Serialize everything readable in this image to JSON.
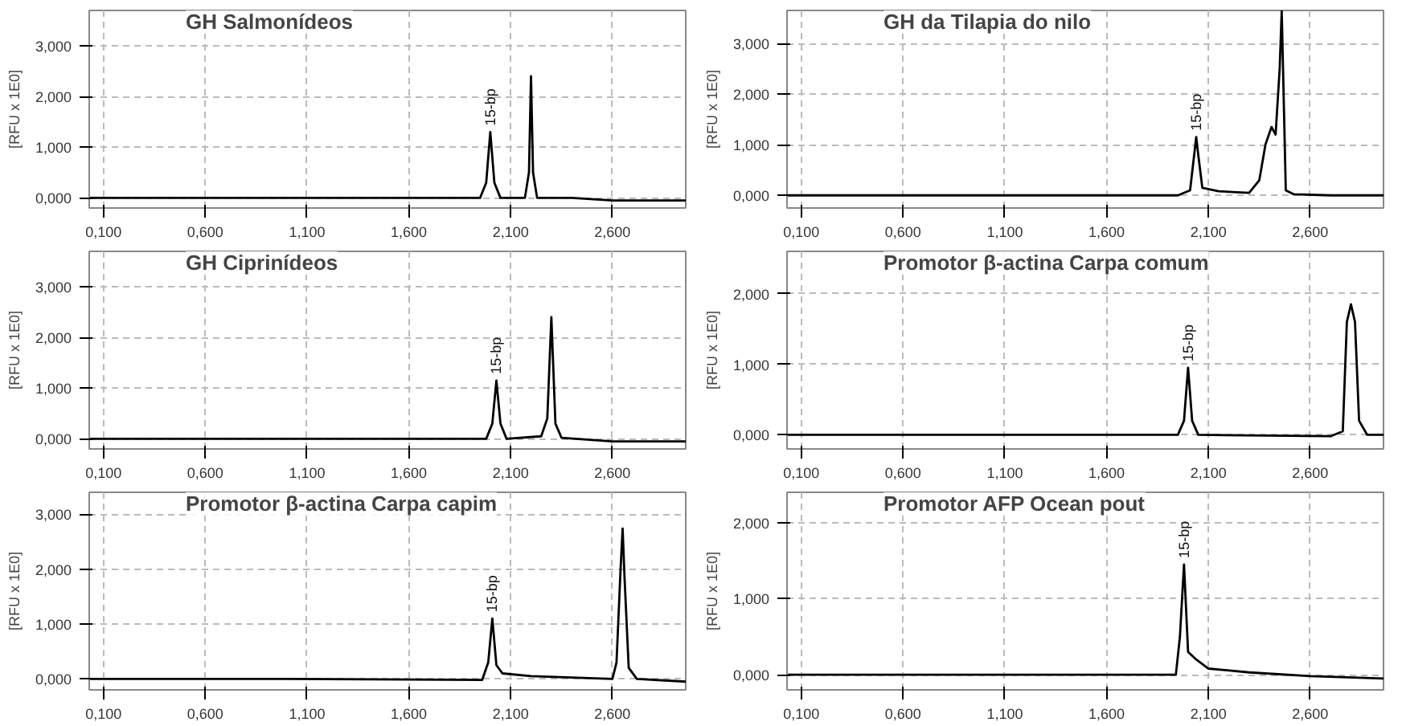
{
  "chart_data": [
    {
      "type": "line",
      "title": "GH Salmonídeos",
      "ylabel": "[RFU x 1E0]",
      "grid": true,
      "xlim": [
        0.03,
        2.96
      ],
      "ylim": [
        -0.2,
        3.7
      ],
      "xticks": [
        {
          "value": 0.1,
          "label": "0,100"
        },
        {
          "value": 0.6,
          "label": "0,600"
        },
        {
          "value": 1.1,
          "label": "1,100"
        },
        {
          "value": 1.6,
          "label": "1,600"
        },
        {
          "value": 2.1,
          "label": "2,100"
        },
        {
          "value": 2.6,
          "label": "2,600"
        }
      ],
      "yticks": [
        {
          "value": 0,
          "label": "0,000"
        },
        {
          "value": 1,
          "label": "1,000"
        },
        {
          "value": 2,
          "label": "2,000"
        },
        {
          "value": 3,
          "label": "3,000"
        }
      ],
      "annotations": [
        {
          "text": "15-bp",
          "x": 2.0,
          "y": 1.3
        }
      ],
      "series": [
        {
          "color": "#000000",
          "x": [
            0.03,
            0.5,
            1.0,
            1.5,
            1.95,
            1.98,
            2.0,
            2.02,
            2.05,
            2.17,
            2.19,
            2.2,
            2.21,
            2.23,
            2.4,
            2.6,
            2.96
          ],
          "values": [
            0,
            0,
            0,
            0,
            0,
            0.3,
            1.3,
            0.3,
            0,
            0,
            0.5,
            2.4,
            0.5,
            0,
            0,
            -0.05,
            -0.05
          ]
        }
      ]
    },
    {
      "type": "line",
      "title": "GH da Tilapia do nilo",
      "ylabel": "[RFU x 1E0]",
      "grid": true,
      "xlim": [
        0.03,
        2.96
      ],
      "ylim": [
        -0.25,
        3.65
      ],
      "xticks": [
        {
          "value": 0.1,
          "label": "0,100"
        },
        {
          "value": 0.6,
          "label": "0,600"
        },
        {
          "value": 1.1,
          "label": "1,100"
        },
        {
          "value": 1.6,
          "label": "1,600"
        },
        {
          "value": 2.1,
          "label": "2,100"
        },
        {
          "value": 2.6,
          "label": "2,600"
        }
      ],
      "yticks": [
        {
          "value": 0,
          "label": "0,000"
        },
        {
          "value": 1,
          "label": "1,000"
        },
        {
          "value": 2,
          "label": "2,000"
        },
        {
          "value": 3,
          "label": "3,000"
        }
      ],
      "annotations": [
        {
          "text": "15-bp",
          "x": 2.04,
          "y": 1.15
        }
      ],
      "series": [
        {
          "color": "#000000",
          "x": [
            0.03,
            1.0,
            1.95,
            2.01,
            2.03,
            2.04,
            2.05,
            2.07,
            2.15,
            2.3,
            2.35,
            2.38,
            2.41,
            2.43,
            2.45,
            2.46,
            2.48,
            2.52,
            2.7,
            2.96
          ],
          "values": [
            0,
            0,
            0,
            0.1,
            0.8,
            1.15,
            0.8,
            0.15,
            0.08,
            0.05,
            0.3,
            1.0,
            1.35,
            1.2,
            2.5,
            3.65,
            0.1,
            0.02,
            0,
            0
          ]
        }
      ]
    },
    {
      "type": "line",
      "title": "GH Ciprinídeos",
      "ylabel": "[RFU x 1E0]",
      "grid": true,
      "xlim": [
        0.03,
        2.96
      ],
      "ylim": [
        -0.2,
        3.7
      ],
      "xticks": [
        {
          "value": 0.1,
          "label": "0,100"
        },
        {
          "value": 0.6,
          "label": "0,600"
        },
        {
          "value": 1.1,
          "label": "1,100"
        },
        {
          "value": 1.6,
          "label": "1,600"
        },
        {
          "value": 2.1,
          "label": "2,100"
        },
        {
          "value": 2.6,
          "label": "2,600"
        }
      ],
      "yticks": [
        {
          "value": 0,
          "label": "0,000"
        },
        {
          "value": 1,
          "label": "1,000"
        },
        {
          "value": 2,
          "label": "2,000"
        },
        {
          "value": 3,
          "label": "3,000"
        }
      ],
      "annotations": [
        {
          "text": "15-bp",
          "x": 2.03,
          "y": 1.15
        }
      ],
      "series": [
        {
          "color": "#000000",
          "x": [
            0.03,
            1.0,
            1.98,
            2.01,
            2.03,
            2.05,
            2.08,
            2.25,
            2.28,
            2.3,
            2.32,
            2.35,
            2.6,
            2.96
          ],
          "values": [
            0,
            0,
            0,
            0.3,
            1.15,
            0.3,
            0,
            0.05,
            0.4,
            2.4,
            0.3,
            0.02,
            -0.05,
            -0.05
          ]
        }
      ]
    },
    {
      "type": "line",
      "title": "Promotor β-actina Carpa comum",
      "ylabel": "[RFU x 1E0]",
      "grid": true,
      "xlim": [
        0.03,
        2.96
      ],
      "ylim": [
        -0.2,
        2.6
      ],
      "xticks": [
        {
          "value": 0.1,
          "label": "0,100"
        },
        {
          "value": 0.6,
          "label": "0,600"
        },
        {
          "value": 1.1,
          "label": "1,100"
        },
        {
          "value": 1.6,
          "label": "1,600"
        },
        {
          "value": 2.1,
          "label": "2,100"
        },
        {
          "value": 2.6,
          "label": "2,600"
        }
      ],
      "yticks": [
        {
          "value": 0,
          "label": "0,000"
        },
        {
          "value": 1,
          "label": "1,000"
        },
        {
          "value": 2,
          "label": "2,000"
        }
      ],
      "annotations": [
        {
          "text": "15-bp",
          "x": 2.0,
          "y": 0.95
        }
      ],
      "series": [
        {
          "color": "#000000",
          "x": [
            0.03,
            1.0,
            1.95,
            1.98,
            2.0,
            2.02,
            2.05,
            2.7,
            2.76,
            2.78,
            2.8,
            2.82,
            2.84,
            2.88,
            2.96
          ],
          "values": [
            0,
            0,
            0,
            0.2,
            0.95,
            0.2,
            0,
            -0.02,
            0.05,
            1.6,
            1.85,
            1.6,
            0.2,
            0,
            0
          ]
        }
      ]
    },
    {
      "type": "line",
      "title": "Promotor β-actina Carpa capim",
      "ylabel": "[RFU x 1E0]",
      "grid": true,
      "xlim": [
        0.03,
        2.96
      ],
      "ylim": [
        -0.2,
        3.4
      ],
      "xticks": [
        {
          "value": 0.1,
          "label": "0,100"
        },
        {
          "value": 0.6,
          "label": "0,600"
        },
        {
          "value": 1.1,
          "label": "1,100"
        },
        {
          "value": 1.6,
          "label": "1,600"
        },
        {
          "value": 2.1,
          "label": "2,100"
        },
        {
          "value": 2.6,
          "label": "2,600"
        }
      ],
      "yticks": [
        {
          "value": 0,
          "label": "0,000"
        },
        {
          "value": 1,
          "label": "1,000"
        },
        {
          "value": 2,
          "label": "2,000"
        },
        {
          "value": 3,
          "label": "3,000"
        }
      ],
      "annotations": [
        {
          "text": "15-bp",
          "x": 2.01,
          "y": 1.1
        }
      ],
      "series": [
        {
          "color": "#000000",
          "x": [
            0.03,
            1.0,
            1.96,
            1.99,
            2.01,
            2.03,
            2.06,
            2.2,
            2.6,
            2.62,
            2.64,
            2.65,
            2.66,
            2.68,
            2.72,
            2.96
          ],
          "values": [
            0,
            0,
            -0.02,
            0.3,
            1.1,
            0.25,
            0.1,
            0.05,
            0,
            0.3,
            2.0,
            2.74,
            1.8,
            0.2,
            0,
            -0.05
          ]
        }
      ]
    },
    {
      "type": "line",
      "title": "Promotor AFP Ocean pout",
      "ylabel": "[RFU x 1E0]",
      "grid": true,
      "xlim": [
        0.03,
        2.96
      ],
      "ylim": [
        -0.2,
        2.4
      ],
      "xticks": [
        {
          "value": 0.1,
          "label": "0,100"
        },
        {
          "value": 0.6,
          "label": "0,600"
        },
        {
          "value": 1.1,
          "label": "1,100"
        },
        {
          "value": 1.6,
          "label": "1,600"
        },
        {
          "value": 2.1,
          "label": "2,100"
        },
        {
          "value": 2.6,
          "label": "2,600"
        }
      ],
      "yticks": [
        {
          "value": 0,
          "label": "0,000"
        },
        {
          "value": 1,
          "label": "1,000"
        },
        {
          "value": 2,
          "label": "2,000"
        }
      ],
      "annotations": [
        {
          "text": "15-bp",
          "x": 1.98,
          "y": 1.45
        }
      ],
      "series": [
        {
          "color": "#000000",
          "x": [
            0.03,
            1.0,
            1.94,
            1.96,
            1.98,
            2.0,
            2.04,
            2.1,
            2.3,
            2.6,
            2.96
          ],
          "values": [
            0,
            0,
            0,
            0.5,
            1.45,
            0.3,
            0.2,
            0.08,
            0.03,
            -0.02,
            -0.05
          ]
        }
      ]
    }
  ]
}
